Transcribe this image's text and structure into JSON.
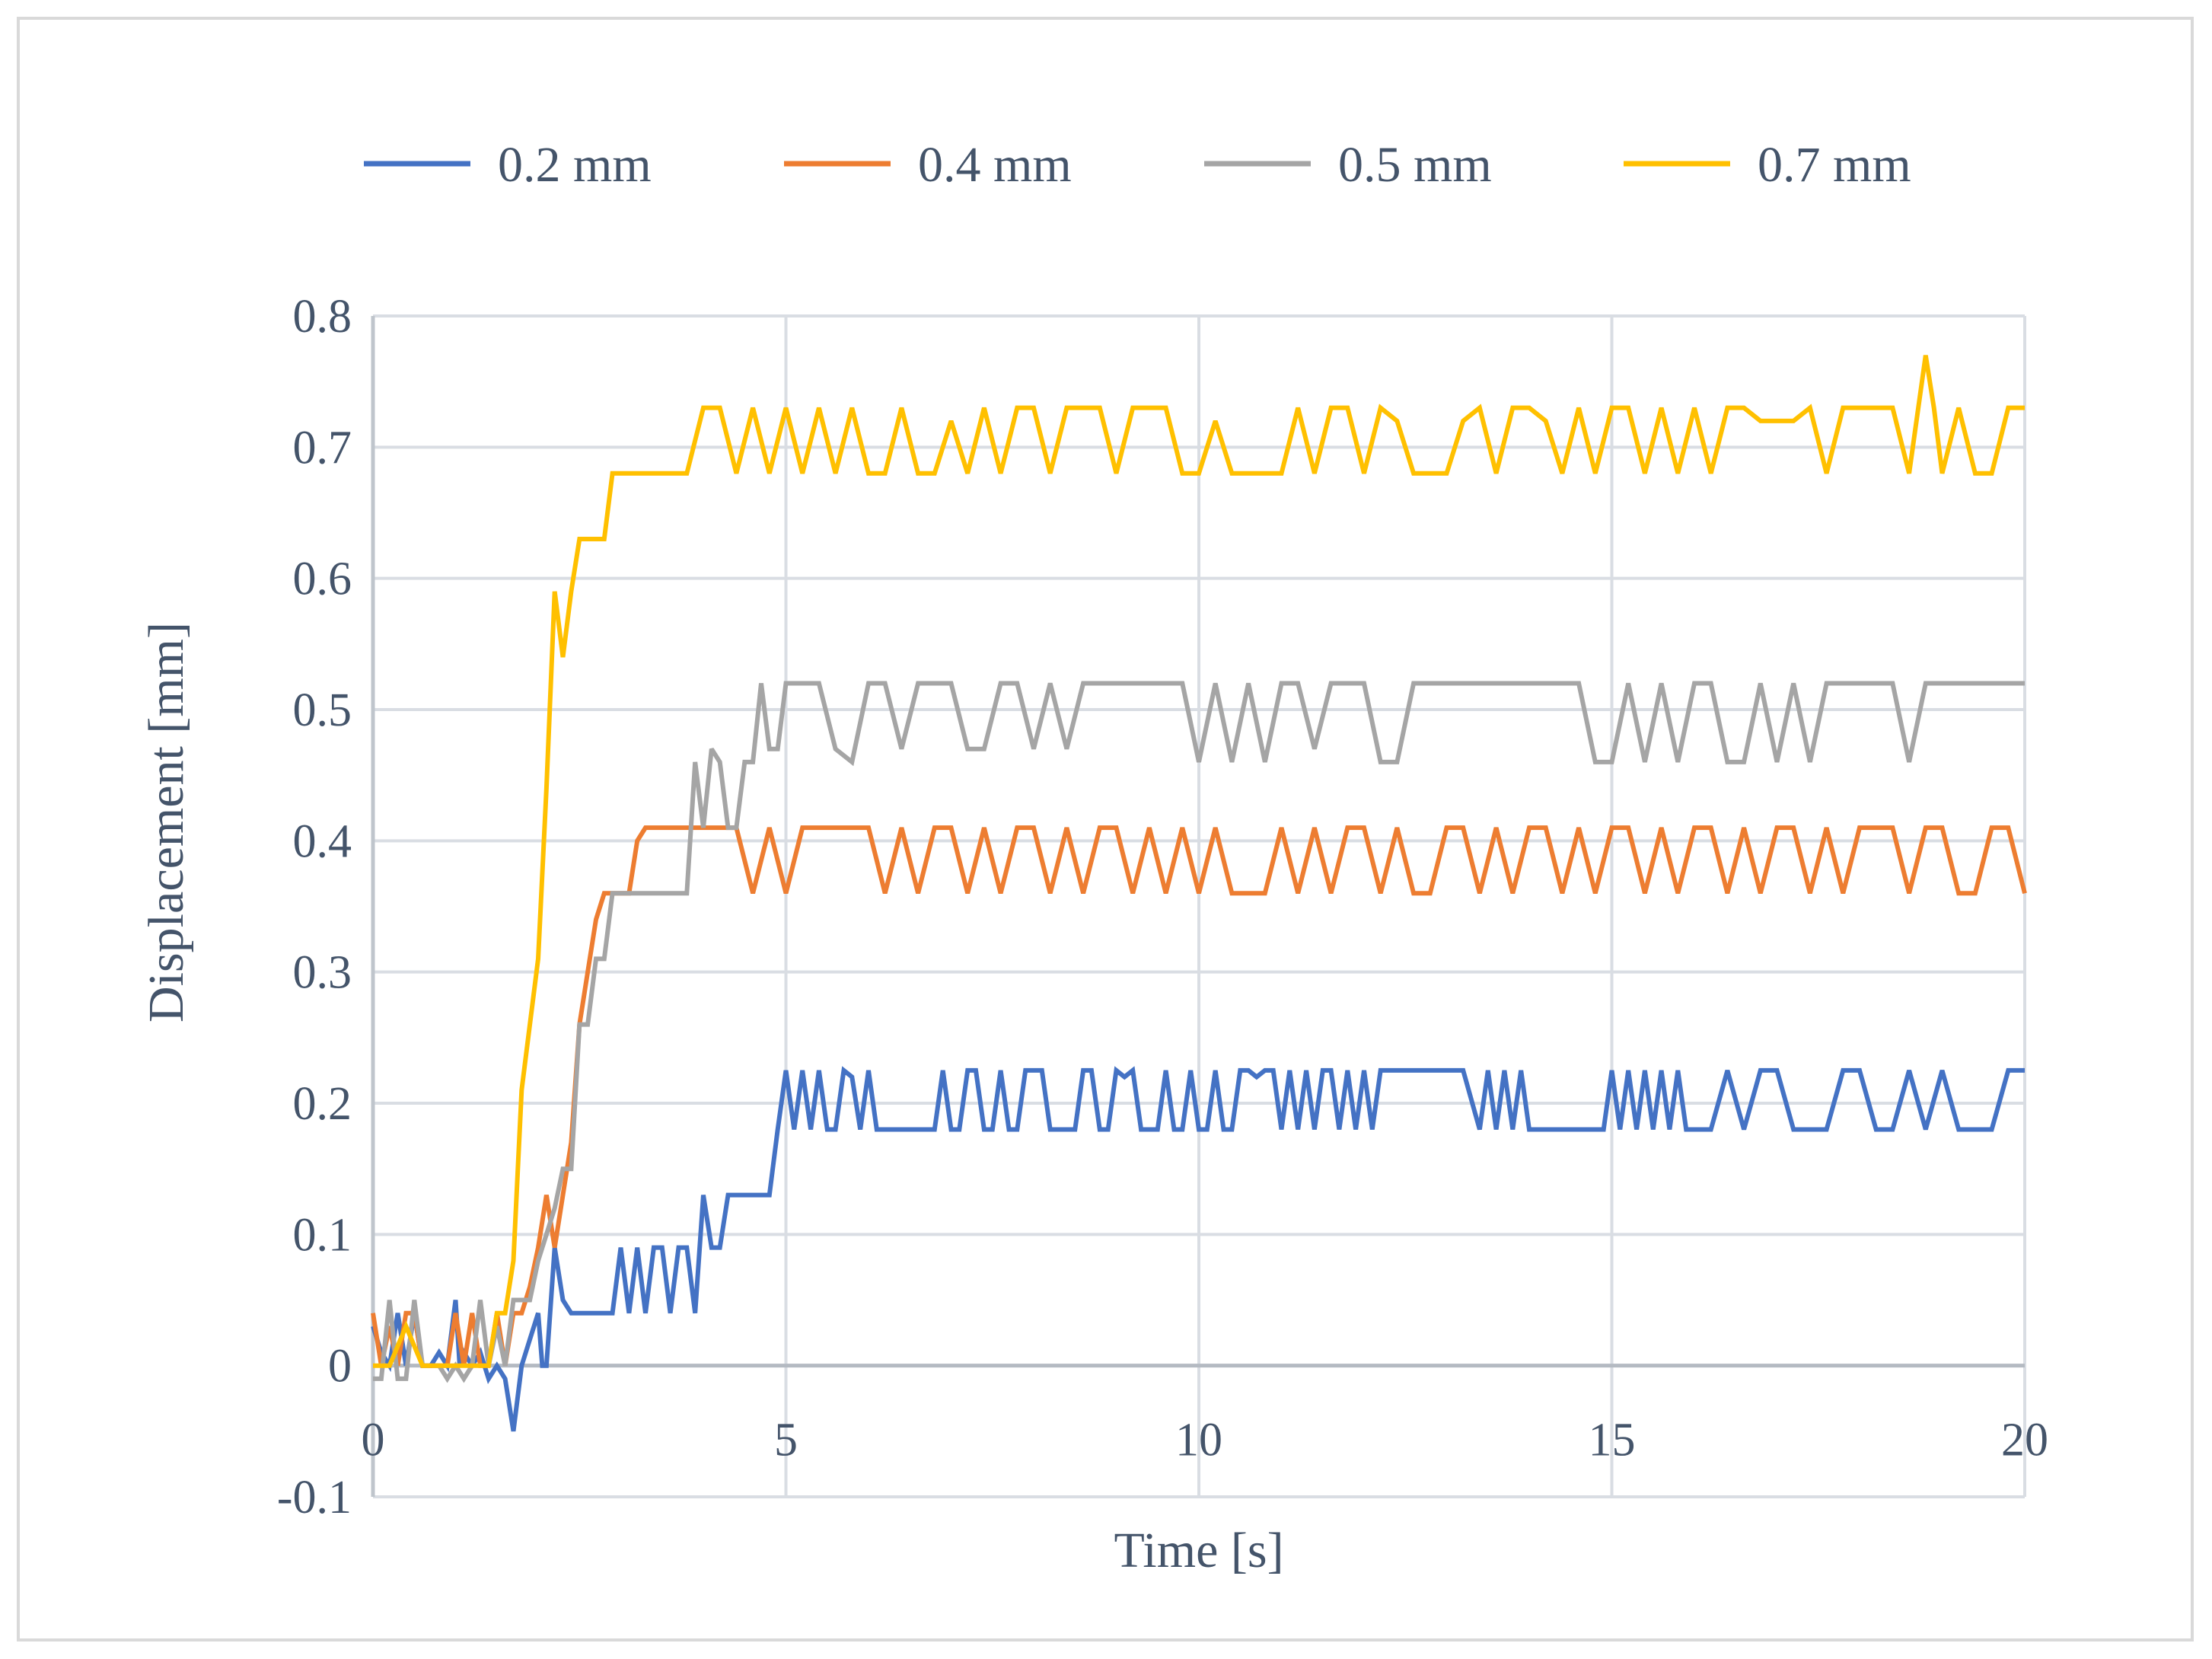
{
  "chart_data": {
    "type": "line",
    "xlabel": "Time [s]",
    "ylabel": "Displacement [mm]",
    "xlim": [
      0,
      20
    ],
    "ylim": [
      -0.1,
      0.8
    ],
    "x_ticks": [
      "0",
      "5",
      "10",
      "15",
      "20"
    ],
    "y_ticks": [
      "-0.1",
      "0",
      "0.1",
      "0.2",
      "0.3",
      "0.4",
      "0.5",
      "0.6",
      "0.7",
      "0.8"
    ],
    "grid": true,
    "legend_position": "top",
    "series": [
      {
        "name": "0.2 mm",
        "color": "#4472c4",
        "x": [
          0,
          0.1,
          0.2,
          0.3,
          0.4,
          0.5,
          0.6,
          0.7,
          0.8,
          0.9,
          1.0,
          1.05,
          1.1,
          1.2,
          1.3,
          1.4,
          1.5,
          1.6,
          1.7,
          1.8,
          1.9,
          2.0,
          2.05,
          2.1,
          2.2,
          2.3,
          2.4,
          2.5,
          2.6,
          2.7,
          2.8,
          2.9,
          3.0,
          3.1,
          3.2,
          3.3,
          3.4,
          3.5,
          3.6,
          3.7,
          3.8,
          3.9,
          4.0,
          4.1,
          4.2,
          4.3,
          4.4,
          4.5,
          4.6,
          4.7,
          4.8,
          4.9,
          5.0,
          5.1,
          5.2,
          5.3,
          5.4,
          5.5,
          5.6,
          5.7,
          5.8,
          5.9,
          6.0,
          6.1,
          6.2,
          6.3,
          6.4,
          6.5,
          6.6,
          6.7,
          6.8,
          6.9,
          7.0,
          7.1,
          7.2,
          7.3,
          7.4,
          7.5,
          7.6,
          7.7,
          7.8,
          7.9,
          8.0,
          8.1,
          8.2,
          8.3,
          8.4,
          8.5,
          8.6,
          8.7,
          8.8,
          8.9,
          9.0,
          9.1,
          9.2,
          9.3,
          9.4,
          9.5,
          9.6,
          9.7,
          9.8,
          9.9,
          10.0,
          10.1,
          10.2,
          10.3,
          10.4,
          10.5,
          10.6,
          10.7,
          10.8,
          10.9,
          11.0,
          11.1,
          11.2,
          11.3,
          11.4,
          11.5,
          11.6,
          11.7,
          11.8,
          11.9,
          12.0,
          12.1,
          12.2,
          12.3,
          12.4,
          12.6,
          12.8,
          13.0,
          13.2,
          13.4,
          13.5,
          13.6,
          13.7,
          13.8,
          13.9,
          14.0,
          14.1,
          14.2,
          14.3,
          14.4,
          14.5,
          14.6,
          14.7,
          14.8,
          14.9,
          15.0,
          15.1,
          15.2,
          15.3,
          15.4,
          15.5,
          15.6,
          15.7,
          15.8,
          15.9,
          16.0,
          16.2,
          16.4,
          16.6,
          16.8,
          17.0,
          17.2,
          17.4,
          17.6,
          17.8,
          18.0,
          18.2,
          18.4,
          18.6,
          18.8,
          19.0,
          19.2,
          19.4,
          19.6,
          19.8,
          20.0
        ],
        "y": [
          0.03,
          0.01,
          0.0,
          0.04,
          0.0,
          0.04,
          0.0,
          0.0,
          0.01,
          0.0,
          0.05,
          0.0,
          0.01,
          0.0,
          0.01,
          -0.01,
          0.0,
          -0.01,
          -0.05,
          0.0,
          0.02,
          0.04,
          0.0,
          0.0,
          0.09,
          0.05,
          0.04,
          0.04,
          0.04,
          0.04,
          0.04,
          0.04,
          0.09,
          0.04,
          0.09,
          0.04,
          0.09,
          0.09,
          0.04,
          0.09,
          0.09,
          0.04,
          0.13,
          0.09,
          0.09,
          0.13,
          0.13,
          0.13,
          0.13,
          0.13,
          0.13,
          0.18,
          0.225,
          0.18,
          0.225,
          0.18,
          0.225,
          0.18,
          0.18,
          0.225,
          0.22,
          0.18,
          0.225,
          0.18,
          0.18,
          0.18,
          0.18,
          0.18,
          0.18,
          0.18,
          0.18,
          0.225,
          0.18,
          0.18,
          0.225,
          0.225,
          0.18,
          0.18,
          0.225,
          0.18,
          0.18,
          0.225,
          0.225,
          0.225,
          0.18,
          0.18,
          0.18,
          0.18,
          0.225,
          0.225,
          0.18,
          0.18,
          0.225,
          0.22,
          0.225,
          0.18,
          0.18,
          0.18,
          0.225,
          0.18,
          0.18,
          0.225,
          0.18,
          0.18,
          0.225,
          0.18,
          0.18,
          0.225,
          0.225,
          0.22,
          0.225,
          0.225,
          0.18,
          0.225,
          0.18,
          0.225,
          0.18,
          0.225,
          0.225,
          0.18,
          0.225,
          0.18,
          0.225,
          0.18,
          0.225,
          0.225,
          0.225,
          0.225,
          0.225,
          0.225,
          0.225,
          0.18,
          0.225,
          0.18,
          0.225,
          0.18,
          0.225,
          0.18,
          0.18,
          0.18,
          0.18,
          0.18,
          0.18,
          0.18,
          0.18,
          0.18,
          0.18,
          0.225,
          0.18,
          0.225,
          0.18,
          0.225,
          0.18,
          0.225,
          0.18,
          0.225,
          0.18,
          0.18,
          0.18,
          0.225,
          0.18,
          0.225,
          0.225,
          0.18,
          0.18,
          0.18,
          0.225,
          0.225,
          0.18,
          0.18,
          0.225,
          0.18,
          0.225,
          0.18,
          0.18,
          0.18,
          0.225,
          0.225
        ]
      },
      {
        "name": "0.4 mm",
        "color": "#ed7d31",
        "x": [
          0,
          0.1,
          0.2,
          0.3,
          0.4,
          0.5,
          0.6,
          0.7,
          0.8,
          0.9,
          1.0,
          1.1,
          1.2,
          1.3,
          1.4,
          1.5,
          1.6,
          1.7,
          1.8,
          1.9,
          2.0,
          2.1,
          2.2,
          2.3,
          2.4,
          2.5,
          2.6,
          2.7,
          2.8,
          2.9,
          3.0,
          3.1,
          3.2,
          3.3,
          3.4,
          3.5,
          3.6,
          3.7,
          3.8,
          3.9,
          4.0,
          4.2,
          4.4,
          4.6,
          4.8,
          5.0,
          5.2,
          5.4,
          5.6,
          5.8,
          6.0,
          6.2,
          6.4,
          6.6,
          6.8,
          7.0,
          7.2,
          7.4,
          7.6,
          7.8,
          8.0,
          8.2,
          8.4,
          8.6,
          8.8,
          9.0,
          9.2,
          9.4,
          9.6,
          9.8,
          10.0,
          10.2,
          10.4,
          10.6,
          10.8,
          11.0,
          11.2,
          11.4,
          11.6,
          11.8,
          12.0,
          12.2,
          12.4,
          12.6,
          12.8,
          13.0,
          13.2,
          13.4,
          13.6,
          13.8,
          14.0,
          14.2,
          14.4,
          14.6,
          14.8,
          15.0,
          15.2,
          15.4,
          15.6,
          15.8,
          16.0,
          16.2,
          16.4,
          16.6,
          16.8,
          17.0,
          17.2,
          17.4,
          17.6,
          17.8,
          18.0,
          18.2,
          18.4,
          18.6,
          18.8,
          19.0,
          19.2,
          19.4,
          19.6,
          19.8,
          20.0
        ],
        "y": [
          0.04,
          0.0,
          0.03,
          0.0,
          0.04,
          0.04,
          0.0,
          0.0,
          0.0,
          0.0,
          0.04,
          0.0,
          0.04,
          0.0,
          0.0,
          0.04,
          0.0,
          0.04,
          0.04,
          0.06,
          0.09,
          0.13,
          0.09,
          0.13,
          0.17,
          0.26,
          0.3,
          0.34,
          0.36,
          0.36,
          0.36,
          0.36,
          0.4,
          0.41,
          0.41,
          0.41,
          0.41,
          0.41,
          0.41,
          0.41,
          0.41,
          0.41,
          0.41,
          0.36,
          0.41,
          0.36,
          0.41,
          0.41,
          0.41,
          0.41,
          0.41,
          0.36,
          0.41,
          0.36,
          0.41,
          0.41,
          0.36,
          0.41,
          0.36,
          0.41,
          0.41,
          0.36,
          0.41,
          0.36,
          0.41,
          0.41,
          0.36,
          0.41,
          0.36,
          0.41,
          0.36,
          0.41,
          0.36,
          0.36,
          0.36,
          0.41,
          0.36,
          0.41,
          0.36,
          0.41,
          0.41,
          0.36,
          0.41,
          0.36,
          0.36,
          0.41,
          0.41,
          0.36,
          0.41,
          0.36,
          0.41,
          0.41,
          0.36,
          0.41,
          0.36,
          0.41,
          0.41,
          0.36,
          0.41,
          0.36,
          0.41,
          0.41,
          0.36,
          0.41,
          0.36,
          0.41,
          0.41,
          0.36,
          0.41,
          0.36,
          0.41,
          0.41,
          0.41,
          0.36,
          0.41,
          0.41,
          0.36,
          0.36,
          0.41,
          0.41,
          0.36
        ]
      },
      {
        "name": "0.5 mm",
        "color": "#a5a5a5",
        "x": [
          0,
          0.1,
          0.2,
          0.3,
          0.4,
          0.5,
          0.6,
          0.7,
          0.8,
          0.9,
          1.0,
          1.1,
          1.2,
          1.3,
          1.4,
          1.5,
          1.6,
          1.7,
          1.8,
          1.9,
          2.0,
          2.1,
          2.2,
          2.3,
          2.4,
          2.5,
          2.6,
          2.7,
          2.8,
          2.9,
          3.0,
          3.1,
          3.2,
          3.4,
          3.6,
          3.8,
          3.9,
          4.0,
          4.1,
          4.2,
          4.3,
          4.4,
          4.5,
          4.6,
          4.7,
          4.8,
          4.9,
          5.0,
          5.1,
          5.2,
          5.3,
          5.4,
          5.6,
          5.8,
          6.0,
          6.2,
          6.4,
          6.6,
          6.8,
          7.0,
          7.2,
          7.4,
          7.6,
          7.8,
          8.0,
          8.2,
          8.4,
          8.6,
          8.8,
          9.0,
          9.2,
          9.4,
          9.6,
          9.8,
          10.0,
          10.2,
          10.4,
          10.6,
          10.8,
          11.0,
          11.2,
          11.4,
          11.6,
          11.8,
          12.0,
          12.2,
          12.4,
          12.6,
          12.8,
          13.0,
          13.2,
          13.4,
          13.6,
          13.8,
          14.0,
          14.2,
          14.4,
          14.6,
          14.8,
          15.0,
          15.2,
          15.4,
          15.6,
          15.8,
          16.0,
          16.2,
          16.4,
          16.6,
          16.8,
          17.0,
          17.2,
          17.4,
          17.6,
          17.8,
          18.0,
          18.2,
          18.4,
          18.6,
          18.8,
          19.0,
          19.2,
          19.4,
          19.6,
          19.8,
          20.0
        ],
        "y": [
          -0.01,
          -0.01,
          0.05,
          -0.01,
          -0.01,
          0.05,
          0.0,
          0.0,
          0.0,
          -0.01,
          0.0,
          -0.01,
          0.0,
          0.05,
          0.0,
          0.03,
          0.0,
          0.05,
          0.05,
          0.05,
          0.08,
          0.1,
          0.12,
          0.15,
          0.15,
          0.26,
          0.26,
          0.31,
          0.31,
          0.36,
          0.36,
          0.36,
          0.36,
          0.36,
          0.36,
          0.36,
          0.46,
          0.41,
          0.47,
          0.46,
          0.41,
          0.41,
          0.46,
          0.46,
          0.52,
          0.47,
          0.47,
          0.52,
          0.52,
          0.52,
          0.52,
          0.52,
          0.47,
          0.46,
          0.52,
          0.52,
          0.47,
          0.52,
          0.52,
          0.52,
          0.47,
          0.47,
          0.52,
          0.52,
          0.47,
          0.52,
          0.47,
          0.52,
          0.52,
          0.52,
          0.52,
          0.52,
          0.52,
          0.52,
          0.46,
          0.52,
          0.46,
          0.52,
          0.46,
          0.52,
          0.52,
          0.47,
          0.52,
          0.52,
          0.52,
          0.46,
          0.46,
          0.52,
          0.52,
          0.52,
          0.52,
          0.52,
          0.52,
          0.52,
          0.52,
          0.52,
          0.52,
          0.52,
          0.46,
          0.46,
          0.52,
          0.46,
          0.52,
          0.46,
          0.52,
          0.52,
          0.46,
          0.46,
          0.52,
          0.46,
          0.52,
          0.46,
          0.52,
          0.52,
          0.52,
          0.52,
          0.52,
          0.46,
          0.52,
          0.52,
          0.52,
          0.52,
          0.52,
          0.52,
          0.52
        ]
      },
      {
        "name": "0.7 mm",
        "color": "#ffc000",
        "x": [
          0,
          0.2,
          0.4,
          0.6,
          0.8,
          1.0,
          1.2,
          1.4,
          1.5,
          1.6,
          1.7,
          1.8,
          1.9,
          2.0,
          2.1,
          2.2,
          2.3,
          2.4,
          2.5,
          2.6,
          2.7,
          2.8,
          2.9,
          3.0,
          3.1,
          3.2,
          3.4,
          3.6,
          3.8,
          4.0,
          4.2,
          4.4,
          4.6,
          4.8,
          5.0,
          5.2,
          5.4,
          5.6,
          5.8,
          6.0,
          6.2,
          6.4,
          6.6,
          6.8,
          7.0,
          7.2,
          7.4,
          7.6,
          7.8,
          8.0,
          8.2,
          8.4,
          8.6,
          8.8,
          9.0,
          9.2,
          9.4,
          9.6,
          9.8,
          10.0,
          10.2,
          10.4,
          10.6,
          10.8,
          11.0,
          11.2,
          11.4,
          11.6,
          11.8,
          12.0,
          12.2,
          12.4,
          12.6,
          12.8,
          13.0,
          13.2,
          13.4,
          13.6,
          13.8,
          14.0,
          14.2,
          14.4,
          14.6,
          14.8,
          15.0,
          15.2,
          15.4,
          15.6,
          15.8,
          16.0,
          16.2,
          16.4,
          16.6,
          16.8,
          17.0,
          17.2,
          17.4,
          17.6,
          17.8,
          18.0,
          18.2,
          18.4,
          18.6,
          18.8,
          18.9,
          19.0,
          19.2,
          19.4,
          19.6,
          19.8,
          20.0
        ],
        "y": [
          0.0,
          0.0,
          0.03,
          0.0,
          0.0,
          0.0,
          0.0,
          0.0,
          0.04,
          0.04,
          0.08,
          0.21,
          0.26,
          0.31,
          0.44,
          0.59,
          0.54,
          0.59,
          0.63,
          0.63,
          0.63,
          0.63,
          0.68,
          0.68,
          0.68,
          0.68,
          0.68,
          0.68,
          0.68,
          0.73,
          0.73,
          0.68,
          0.73,
          0.68,
          0.73,
          0.68,
          0.73,
          0.68,
          0.73,
          0.68,
          0.68,
          0.73,
          0.68,
          0.68,
          0.72,
          0.68,
          0.73,
          0.68,
          0.73,
          0.73,
          0.68,
          0.73,
          0.73,
          0.73,
          0.68,
          0.73,
          0.73,
          0.73,
          0.68,
          0.68,
          0.72,
          0.68,
          0.68,
          0.68,
          0.68,
          0.73,
          0.68,
          0.73,
          0.73,
          0.68,
          0.73,
          0.72,
          0.68,
          0.68,
          0.68,
          0.72,
          0.73,
          0.68,
          0.73,
          0.73,
          0.72,
          0.68,
          0.73,
          0.68,
          0.73,
          0.73,
          0.68,
          0.73,
          0.68,
          0.73,
          0.68,
          0.73,
          0.73,
          0.72,
          0.72,
          0.72,
          0.73,
          0.68,
          0.73,
          0.73,
          0.73,
          0.73,
          0.68,
          0.77,
          0.73,
          0.68,
          0.73,
          0.68,
          0.68,
          0.73,
          0.73
        ]
      }
    ]
  }
}
